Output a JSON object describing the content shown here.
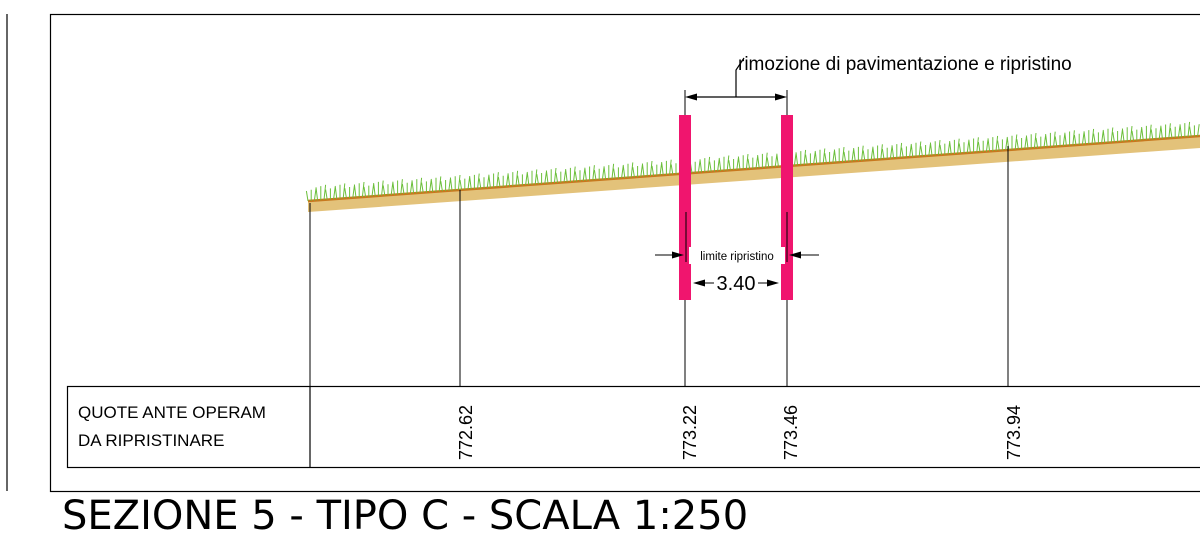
{
  "section": {
    "title": "SEZIONE 5 - TIPO C - SCALA 1:250"
  },
  "annotations": {
    "removal_label": "rimozione di pavimentazione e ripristino",
    "limit_label": "limite ripristino",
    "width_dimension": "3.40"
  },
  "table": {
    "row_label_line1": "QUOTE ANTE OPERAM",
    "row_label_line2": "DA RIPRISTINARE",
    "elevations": [
      "772.62",
      "773.22",
      "773.46",
      "773.94"
    ]
  },
  "colors": {
    "terrain_fill": "#E3C27A",
    "terrain_line": "#C8781E",
    "grass": "#6BBF3A",
    "limit_markers": "#F0156E",
    "lines": "#000000"
  }
}
